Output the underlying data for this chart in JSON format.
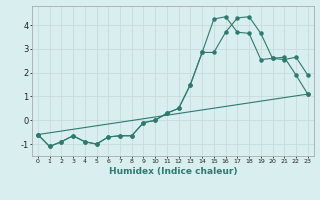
{
  "xlabel": "Humidex (Indice chaleur)",
  "background_color": "#d9eeee",
  "grid_color": "#c8dcdc",
  "line_color": "#2d7a6e",
  "x_ticks": [
    0,
    1,
    2,
    3,
    4,
    5,
    6,
    7,
    8,
    9,
    10,
    11,
    12,
    13,
    14,
    15,
    16,
    17,
    18,
    19,
    20,
    21,
    22,
    23
  ],
  "y_ticks": [
    -1,
    0,
    1,
    2,
    3,
    4
  ],
  "xlim": [
    -0.5,
    23.5
  ],
  "ylim": [
    -1.5,
    4.8
  ],
  "series1_x": [
    0,
    1,
    2,
    3,
    4,
    5,
    6,
    7,
    8,
    9,
    10,
    11,
    12,
    13,
    14,
    15,
    16,
    17,
    18,
    19,
    20,
    21,
    22,
    23
  ],
  "series1_y": [
    -0.6,
    -1.1,
    -0.9,
    -0.65,
    -0.9,
    -1.0,
    -0.7,
    -0.65,
    -0.65,
    -0.1,
    0.0,
    0.3,
    0.5,
    1.5,
    2.85,
    2.85,
    3.7,
    4.3,
    4.35,
    3.65,
    2.6,
    2.55,
    2.65,
    1.9
  ],
  "series2_x": [
    0,
    1,
    2,
    3,
    4,
    5,
    6,
    7,
    8,
    9,
    10,
    11,
    12,
    13,
    14,
    15,
    16,
    17,
    18,
    19,
    20,
    21,
    22,
    23
  ],
  "series2_y": [
    -0.6,
    -1.1,
    -0.9,
    -0.65,
    -0.9,
    -1.0,
    -0.7,
    -0.65,
    -0.65,
    -0.1,
    0.0,
    0.3,
    0.5,
    1.5,
    2.85,
    4.25,
    4.35,
    3.7,
    3.65,
    2.55,
    2.6,
    2.65,
    1.9,
    1.1
  ],
  "series3_x": [
    0,
    23
  ],
  "series3_y": [
    -0.6,
    1.1
  ]
}
